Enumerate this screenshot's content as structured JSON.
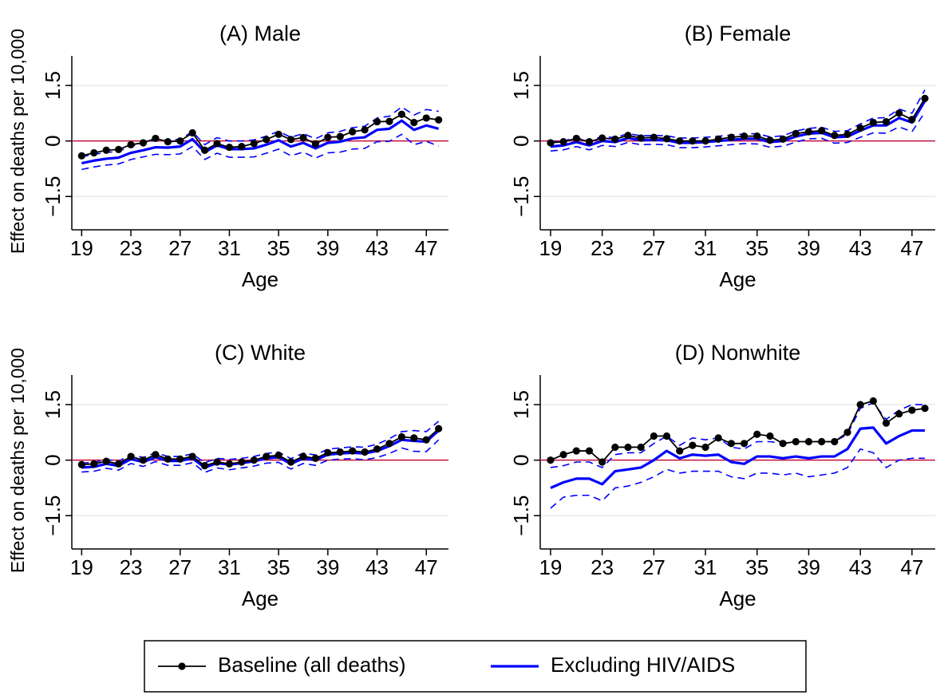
{
  "chart_data": [
    {
      "type": "line",
      "title": "(A) Male",
      "xlabel": "Age",
      "ylabel": "Effect on deaths per 10,000",
      "x": [
        19,
        20,
        21,
        22,
        23,
        24,
        25,
        26,
        27,
        28,
        29,
        30,
        31,
        32,
        33,
        34,
        35,
        36,
        37,
        38,
        39,
        40,
        41,
        42,
        43,
        44,
        45,
        46,
        47,
        48
      ],
      "xlim": [
        18.2,
        48.8
      ],
      "xticks": [
        19,
        23,
        27,
        31,
        35,
        39,
        43,
        47
      ],
      "ylim": [
        -2.4,
        2.3
      ],
      "yticks": [
        {
          "value": -1.5,
          "label": "−1.5"
        },
        0,
        1.5
      ],
      "grid": true,
      "hline": 0,
      "hline_color": "#c8103e",
      "legend": "bottom",
      "series": [
        {
          "color": "#0000ff",
          "dash": true,
          "values": [
            -0.43,
            -0.36,
            -0.31,
            -0.28,
            -0.14,
            -0.07,
            0.02,
            0.01,
            0.05,
            0.25,
            -0.1,
            0.09,
            0.0,
            0.0,
            0.03,
            0.13,
            0.26,
            0.1,
            0.2,
            0.06,
            0.22,
            0.26,
            0.36,
            0.4,
            0.62,
            0.67,
            0.92,
            0.7,
            0.85,
            0.8
          ]
        },
        {
          "color": "#0000ff",
          "dash": true,
          "values": [
            -0.77,
            -0.7,
            -0.65,
            -0.62,
            -0.5,
            -0.43,
            -0.36,
            -0.37,
            -0.35,
            -0.15,
            -0.5,
            -0.33,
            -0.44,
            -0.44,
            -0.43,
            -0.33,
            -0.22,
            -0.4,
            -0.3,
            -0.46,
            -0.32,
            -0.3,
            -0.22,
            -0.2,
            -0.02,
            -0.01,
            0.18,
            -0.1,
            -0.01,
            -0.14
          ]
        },
        {
          "name": "Excluding HIV/AIDS",
          "color": "#0000ff",
          "values": [
            -0.6,
            -0.53,
            -0.48,
            -0.45,
            -0.32,
            -0.25,
            -0.17,
            -0.18,
            -0.15,
            0.05,
            -0.3,
            -0.12,
            -0.22,
            -0.22,
            -0.2,
            -0.1,
            0.02,
            -0.15,
            -0.05,
            -0.2,
            -0.05,
            -0.02,
            0.07,
            0.1,
            0.3,
            0.33,
            0.55,
            0.3,
            0.42,
            0.33
          ]
        },
        {
          "name": "Baseline (all deaths)",
          "color": "#000000",
          "marker": true,
          "values": [
            -0.4,
            -0.32,
            -0.25,
            -0.23,
            -0.1,
            -0.05,
            0.07,
            -0.02,
            0.0,
            0.22,
            -0.25,
            -0.07,
            -0.17,
            -0.15,
            -0.07,
            0.04,
            0.18,
            0.04,
            0.09,
            -0.08,
            0.1,
            0.12,
            0.25,
            0.3,
            0.52,
            0.53,
            0.72,
            0.5,
            0.62,
            0.57
          ]
        }
      ]
    },
    {
      "type": "line",
      "title": "(B) Female",
      "xlabel": "Age",
      "x": [
        19,
        20,
        21,
        22,
        23,
        24,
        25,
        26,
        27,
        28,
        29,
        30,
        31,
        32,
        33,
        34,
        35,
        36,
        37,
        38,
        39,
        40,
        41,
        42,
        43,
        44,
        45,
        46,
        47,
        48
      ],
      "xlim": [
        18.2,
        48.8
      ],
      "xticks": [
        19,
        23,
        27,
        31,
        35,
        39,
        43,
        47
      ],
      "ylim": [
        -2.4,
        2.3
      ],
      "yticks": [
        {
          "value": -1.5,
          "label": "−1.5"
        },
        0,
        1.5
      ],
      "grid": true,
      "hline": 0,
      "hline_color": "#c8103e",
      "series": [
        {
          "color": "#0000ff",
          "dash": true,
          "values": [
            -0.03,
            0.0,
            0.09,
            0.0,
            0.12,
            0.09,
            0.2,
            0.14,
            0.15,
            0.14,
            0.08,
            0.08,
            0.1,
            0.13,
            0.16,
            0.19,
            0.2,
            0.11,
            0.14,
            0.27,
            0.34,
            0.37,
            0.26,
            0.28,
            0.46,
            0.62,
            0.63,
            0.86,
            0.75,
            1.38
          ]
        },
        {
          "color": "#0000ff",
          "dash": true,
          "values": [
            -0.27,
            -0.24,
            -0.15,
            -0.24,
            -0.12,
            -0.15,
            -0.04,
            -0.1,
            -0.09,
            -0.1,
            -0.18,
            -0.18,
            -0.16,
            -0.13,
            -0.1,
            -0.07,
            -0.08,
            -0.17,
            -0.14,
            -0.03,
            0.06,
            0.07,
            -0.06,
            -0.04,
            0.1,
            0.22,
            0.21,
            0.38,
            0.25,
            0.78
          ]
        },
        {
          "color": "#0000ff",
          "values": [
            -0.15,
            -0.12,
            -0.03,
            -0.12,
            0.0,
            -0.03,
            0.08,
            0.02,
            0.03,
            0.02,
            -0.05,
            -0.05,
            -0.03,
            0.0,
            0.03,
            0.06,
            0.06,
            -0.03,
            0.0,
            0.12,
            0.2,
            0.22,
            0.1,
            0.12,
            0.28,
            0.42,
            0.42,
            0.62,
            0.5,
            1.08
          ]
        },
        {
          "color": "#000000",
          "marker": true,
          "values": [
            -0.05,
            -0.02,
            0.07,
            -0.02,
            0.08,
            0.05,
            0.15,
            0.08,
            0.1,
            0.06,
            0.0,
            0.0,
            0.0,
            0.05,
            0.1,
            0.13,
            0.13,
            0.02,
            0.05,
            0.2,
            0.25,
            0.28,
            0.15,
            0.18,
            0.35,
            0.5,
            0.52,
            0.75,
            0.58,
            1.15
          ]
        }
      ]
    },
    {
      "type": "line",
      "title": "(C) White",
      "xlabel": "Age",
      "ylabel": "Effect on deaths per 10,000",
      "x": [
        19,
        20,
        21,
        22,
        23,
        24,
        25,
        26,
        27,
        28,
        29,
        30,
        31,
        32,
        33,
        34,
        35,
        36,
        37,
        38,
        39,
        40,
        41,
        42,
        43,
        44,
        45,
        46,
        47,
        48
      ],
      "xlim": [
        18.2,
        48.8
      ],
      "xticks": [
        19,
        23,
        27,
        31,
        35,
        39,
        43,
        47
      ],
      "ylim": [
        -2.4,
        2.3
      ],
      "yticks": [
        {
          "value": -1.5,
          "label": "−1.5"
        },
        0,
        1.5
      ],
      "grid": true,
      "hline": 0,
      "hline_color": "#c8103e",
      "series": [
        {
          "color": "#0000ff",
          "dash": true,
          "values": [
            -0.08,
            -0.06,
            0.02,
            -0.03,
            0.15,
            0.07,
            0.2,
            0.1,
            0.1,
            0.17,
            -0.07,
            0.05,
            0.02,
            0.05,
            0.1,
            0.18,
            0.22,
            0.04,
            0.19,
            0.14,
            0.3,
            0.33,
            0.36,
            0.35,
            0.43,
            0.58,
            0.77,
            0.8,
            0.77,
            1.05
          ]
        },
        {
          "color": "#0000ff",
          "dash": true,
          "values": [
            -0.32,
            -0.3,
            -0.22,
            -0.27,
            -0.09,
            -0.17,
            -0.04,
            -0.14,
            -0.14,
            -0.07,
            -0.33,
            -0.21,
            -0.26,
            -0.21,
            -0.16,
            -0.08,
            -0.06,
            -0.24,
            -0.09,
            -0.14,
            0.0,
            0.03,
            0.04,
            0.01,
            0.07,
            0.18,
            0.33,
            0.24,
            0.23,
            0.55
          ]
        },
        {
          "color": "#0000ff",
          "values": [
            -0.2,
            -0.18,
            -0.1,
            -0.15,
            0.03,
            -0.05,
            0.08,
            -0.02,
            -0.02,
            0.05,
            -0.2,
            -0.08,
            -0.12,
            -0.08,
            -0.03,
            0.05,
            0.08,
            -0.1,
            0.05,
            0.0,
            0.15,
            0.18,
            0.2,
            0.18,
            0.25,
            0.38,
            0.55,
            0.52,
            0.5,
            0.8
          ]
        },
        {
          "color": "#000000",
          "marker": true,
          "values": [
            -0.12,
            -0.1,
            -0.03,
            -0.1,
            0.1,
            0.0,
            0.15,
            0.03,
            0.03,
            0.1,
            -0.15,
            -0.05,
            -0.1,
            -0.05,
            0.0,
            0.1,
            0.13,
            -0.05,
            0.1,
            0.05,
            0.2,
            0.22,
            0.25,
            0.22,
            0.3,
            0.45,
            0.63,
            0.6,
            0.55,
            0.85
          ]
        }
      ]
    },
    {
      "type": "line",
      "title": "(D) Nonwhite",
      "xlabel": "Age",
      "x": [
        19,
        20,
        21,
        22,
        23,
        24,
        25,
        26,
        27,
        28,
        29,
        30,
        31,
        32,
        33,
        34,
        35,
        36,
        37,
        38,
        39,
        40,
        41,
        42,
        43,
        44,
        45,
        46,
        47,
        48
      ],
      "xlim": [
        18.2,
        48.8
      ],
      "xticks": [
        19,
        23,
        27,
        31,
        35,
        39,
        43,
        47
      ],
      "ylim": [
        -2.4,
        2.3
      ],
      "yticks": [
        {
          "value": -1.5,
          "label": "−1.5"
        },
        0,
        1.5
      ],
      "grid": true,
      "hline": 0,
      "hline_color": "#c8103e",
      "series": [
        {
          "color": "#0000ff",
          "dash": true,
          "values": [
            -0.2,
            -0.15,
            -0.05,
            -0.05,
            -0.2,
            0.15,
            0.2,
            0.2,
            0.45,
            0.65,
            0.4,
            0.6,
            0.55,
            0.6,
            0.35,
            0.3,
            0.5,
            0.5,
            0.45,
            0.5,
            0.5,
            0.5,
            0.5,
            0.7,
            1.4,
            1.55,
            1.1,
            1.35,
            1.5,
            1.5
          ]
        },
        {
          "color": "#0000ff",
          "dash": true,
          "values": [
            -1.3,
            -1.0,
            -0.95,
            -0.95,
            -1.1,
            -0.75,
            -0.7,
            -0.6,
            -0.45,
            -0.25,
            -0.35,
            -0.3,
            -0.3,
            -0.3,
            -0.45,
            -0.5,
            -0.35,
            -0.35,
            -0.4,
            -0.35,
            -0.45,
            -0.4,
            -0.35,
            -0.2,
            0.3,
            0.2,
            -0.2,
            0.0,
            0.05,
            0.05
          ]
        },
        {
          "color": "#0000ff",
          "values": [
            -0.75,
            -0.6,
            -0.5,
            -0.5,
            -0.65,
            -0.3,
            -0.25,
            -0.2,
            0.0,
            0.25,
            0.05,
            0.15,
            0.12,
            0.15,
            -0.05,
            -0.1,
            0.1,
            0.1,
            0.05,
            0.1,
            0.05,
            0.1,
            0.1,
            0.3,
            0.85,
            0.88,
            0.45,
            0.65,
            0.8,
            0.8
          ]
        },
        {
          "color": "#000000",
          "marker": true,
          "values": [
            0.0,
            0.15,
            0.25,
            0.25,
            -0.05,
            0.35,
            0.35,
            0.35,
            0.65,
            0.65,
            0.25,
            0.4,
            0.35,
            0.6,
            0.45,
            0.45,
            0.7,
            0.65,
            0.45,
            0.5,
            0.5,
            0.5,
            0.5,
            0.75,
            1.5,
            1.6,
            1.0,
            1.25,
            1.35,
            1.4
          ]
        }
      ]
    }
  ]
}
